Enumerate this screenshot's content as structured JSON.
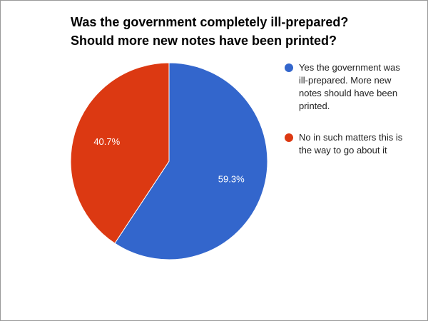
{
  "chart_data": {
    "type": "pie",
    "title": [
      "Was the government completely ill-prepared?",
      "Should more new notes have been printed?"
    ],
    "categories": [
      "Yes the government was ill-prepared. More new notes should have been printed.",
      "No in such matters this is the way to go about it"
    ],
    "values": [
      59.3,
      40.7
    ],
    "value_labels": [
      "59.3%",
      "40.7%"
    ],
    "colors": [
      "#3366cc",
      "#dc3912"
    ],
    "legend": "right"
  }
}
